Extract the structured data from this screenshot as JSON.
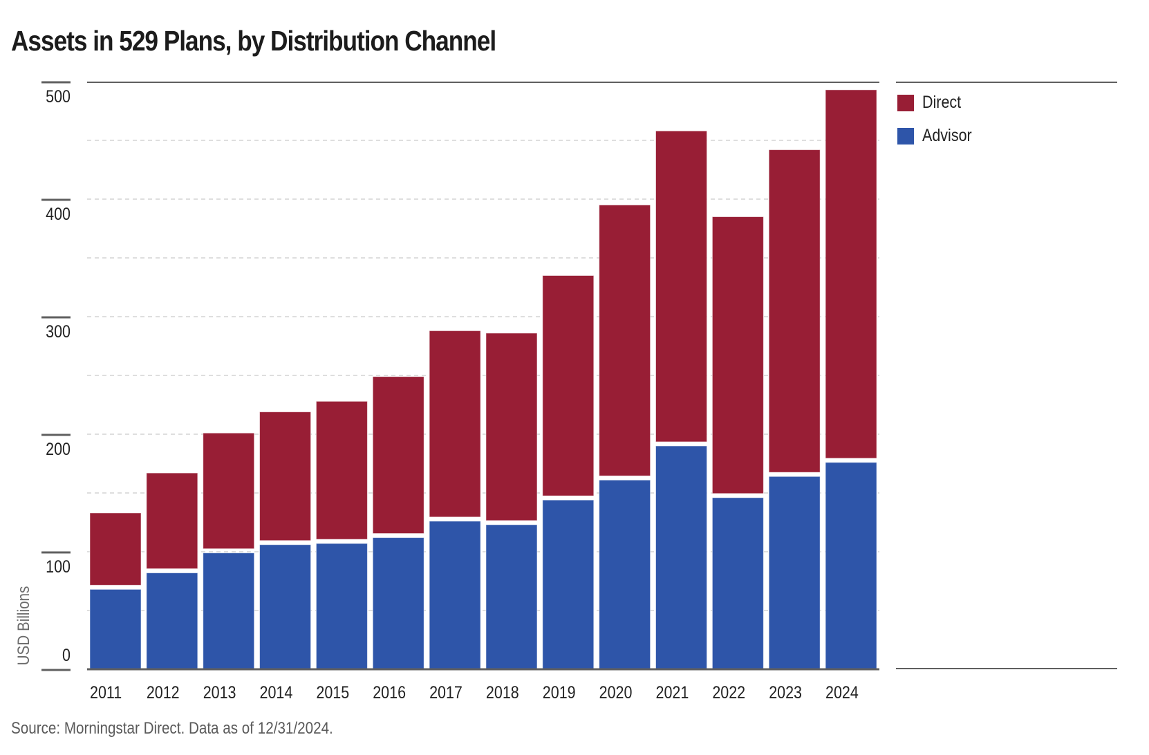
{
  "chart_data": {
    "type": "bar",
    "stacked": true,
    "title": "Assets in 529 Plans, by Distribution Channel",
    "xlabel": "",
    "ylabel": "USD Billions",
    "ylim": [
      0,
      500
    ],
    "yticks": [
      0,
      100,
      200,
      300,
      400,
      500
    ],
    "ytick_labels": [
      "0",
      "100",
      "200",
      "300",
      "400",
      "500"
    ],
    "grid": true,
    "legend_position": "right",
    "categories": [
      "2011",
      "2012",
      "2013",
      "2014",
      "2015",
      "2016",
      "2017",
      "2018",
      "2019",
      "2020",
      "2021",
      "2022",
      "2023",
      "2024"
    ],
    "series": [
      {
        "name": "Advisor",
        "color": "#2e55a9",
        "values": [
          68,
          82,
          99,
          106,
          107,
          112,
          126,
          123,
          144,
          161,
          190,
          146,
          164,
          176
        ]
      },
      {
        "name": "Direct",
        "color": "#981e35",
        "values": [
          65,
          85,
          102,
          113,
          121,
          137,
          162,
          163,
          191,
          234,
          268,
          239,
          278,
          317
        ]
      }
    ],
    "legend": [
      {
        "name": "Direct",
        "color": "#981e35"
      },
      {
        "name": "Advisor",
        "color": "#2e55a9"
      }
    ],
    "source": "Source: Morningstar Direct. Data as of 12/31/2024."
  }
}
